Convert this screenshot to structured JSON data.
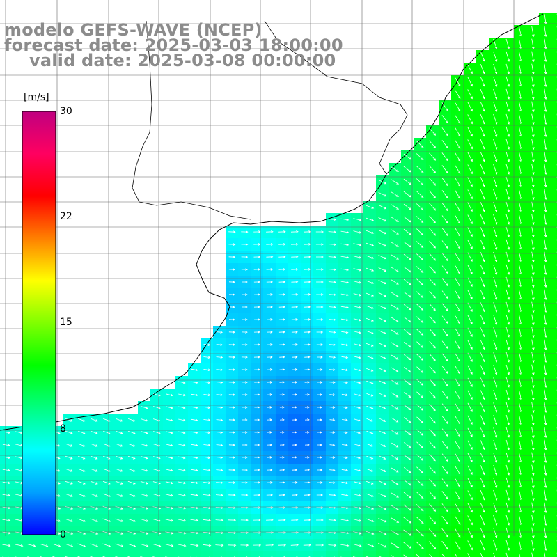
{
  "title": {
    "line1": "modelo GEFS-WAVE (NCEP)",
    "line2": "forecast date: 2025-03-03 18:00:00",
    "line3": "valid date: 2025-03-08 00:00:00"
  },
  "colorbar": {
    "unit": "[m/s]",
    "ticks": [
      "30",
      "22",
      "15",
      "8",
      "0"
    ],
    "tick_values": [
      30,
      22,
      15,
      8,
      0
    ],
    "range": [
      0,
      30
    ],
    "colors": [
      "#0000ff",
      "#00a0ff",
      "#00ffff",
      "#00ff80",
      "#00ff00",
      "#80ff00",
      "#ffff00",
      "#ff8000",
      "#ff0000",
      "#ff0060",
      "#c00080"
    ]
  },
  "map": {
    "variable": "wind speed and direction",
    "land_color": "#ffffff",
    "coastline_color": "#000000",
    "grid_color": "#555555"
  }
}
